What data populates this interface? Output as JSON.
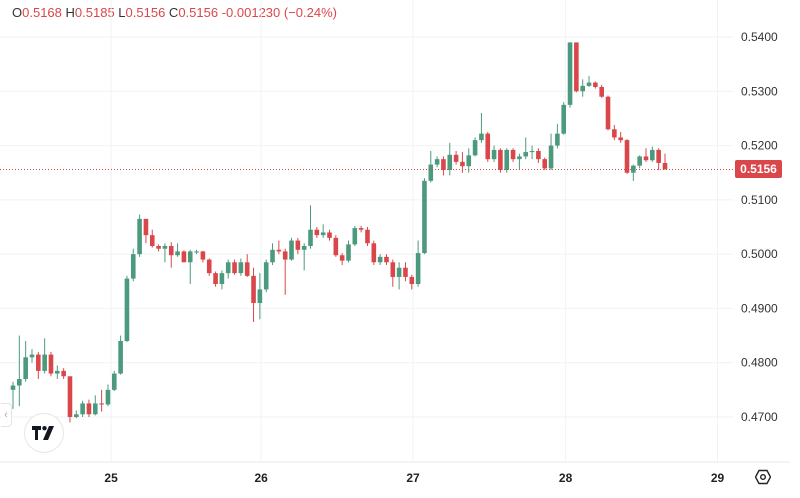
{
  "legend": {
    "open_label": "O",
    "open": "0.5168",
    "high_label": "H",
    "high": "0.5185",
    "low_label": "L",
    "low": "0.5156",
    "close_label": "C",
    "close": "0.5156",
    "change": "-0.001230 (−0.24%)"
  },
  "last_price": "0.5156",
  "colors": {
    "up": "#4c9a7d",
    "down": "#d9474b",
    "grid": "#f0f2f5"
  },
  "chart_data": {
    "type": "candlestick",
    "title": "",
    "xlabel": "",
    "ylabel": "",
    "ylim": [
      0.4655,
      0.546
    ],
    "y_ticks": [
      "0.5400",
      "0.5300",
      "0.5200",
      "0.5100",
      "0.5000",
      "0.4900",
      "0.4800",
      "0.4700"
    ],
    "x_ticks": [
      "25",
      "26",
      "27",
      "28",
      "29"
    ],
    "x_tick_candle_index": [
      15.5,
      39.2,
      63.2,
      87.3,
      111.3
    ],
    "last_price": 0.5156,
    "grid": true,
    "candles": [
      [
        0.475,
        0.4765,
        0.4715,
        0.4758
      ],
      [
        0.4758,
        0.485,
        0.472,
        0.477
      ],
      [
        0.477,
        0.484,
        0.4765,
        0.481
      ],
      [
        0.481,
        0.4825,
        0.48,
        0.4815
      ],
      [
        0.4815,
        0.482,
        0.477,
        0.4785
      ],
      [
        0.4785,
        0.4845,
        0.478,
        0.4815
      ],
      [
        0.4815,
        0.482,
        0.4775,
        0.478
      ],
      [
        0.478,
        0.4795,
        0.477,
        0.4785
      ],
      [
        0.4785,
        0.479,
        0.477,
        0.4775
      ],
      [
        0.4775,
        0.4775,
        0.469,
        0.47
      ],
      [
        0.47,
        0.4712,
        0.4698,
        0.4705
      ],
      [
        0.4705,
        0.473,
        0.47,
        0.4725
      ],
      [
        0.4725,
        0.4732,
        0.47,
        0.4705
      ],
      [
        0.4705,
        0.474,
        0.4703,
        0.4725
      ],
      [
        0.4725,
        0.475,
        0.471,
        0.4723
      ],
      [
        0.4723,
        0.476,
        0.472,
        0.475
      ],
      [
        0.475,
        0.4785,
        0.4748,
        0.478
      ],
      [
        0.478,
        0.485,
        0.4778,
        0.484
      ],
      [
        0.484,
        0.496,
        0.4838,
        0.4955
      ],
      [
        0.4955,
        0.501,
        0.495,
        0.5
      ],
      [
        0.5,
        0.5073,
        0.4995,
        0.5065
      ],
      [
        0.5065,
        0.5065,
        0.502,
        0.5035
      ],
      [
        0.5035,
        0.5045,
        0.5012,
        0.5015
      ],
      [
        0.5015,
        0.5018,
        0.5005,
        0.501
      ],
      [
        0.501,
        0.502,
        0.4985,
        0.5015
      ],
      [
        0.5015,
        0.5022,
        0.4975,
        0.4998
      ],
      [
        0.4998,
        0.502,
        0.4995,
        0.5005
      ],
      [
        0.5005,
        0.5007,
        0.499,
        0.4985
      ],
      [
        0.4985,
        0.5008,
        0.4945,
        0.5005
      ],
      [
        0.5005,
        0.5008,
        0.5,
        0.5005
      ],
      [
        0.5005,
        0.5006,
        0.4985,
        0.499
      ],
      [
        0.499,
        0.4992,
        0.496,
        0.4965
      ],
      [
        0.4965,
        0.4968,
        0.494,
        0.4945
      ],
      [
        0.4945,
        0.497,
        0.4935,
        0.4965
      ],
      [
        0.4965,
        0.499,
        0.4955,
        0.4985
      ],
      [
        0.4985,
        0.499,
        0.4962,
        0.4965
      ],
      [
        0.4965,
        0.4992,
        0.496,
        0.4985
      ],
      [
        0.4985,
        0.5,
        0.4958,
        0.496
      ],
      [
        0.496,
        0.4975,
        0.4875,
        0.491
      ],
      [
        0.491,
        0.4965,
        0.488,
        0.4935
      ],
      [
        0.4935,
        0.499,
        0.493,
        0.4985
      ],
      [
        0.4985,
        0.502,
        0.498,
        0.5008
      ],
      [
        0.5008,
        0.5025,
        0.5,
        0.5005
      ],
      [
        0.5005,
        0.501,
        0.4925,
        0.499
      ],
      [
        0.499,
        0.503,
        0.4988,
        0.5025
      ],
      [
        0.5025,
        0.503,
        0.5,
        0.5008
      ],
      [
        0.5008,
        0.502,
        0.497,
        0.5015
      ],
      [
        0.5015,
        0.509,
        0.501,
        0.5045
      ],
      [
        0.5045,
        0.505,
        0.503,
        0.5035
      ],
      [
        0.5035,
        0.5055,
        0.503,
        0.504
      ],
      [
        0.504,
        0.5045,
        0.5025,
        0.503
      ],
      [
        0.503,
        0.5035,
        0.4995,
        0.4998
      ],
      [
        0.4998,
        0.5002,
        0.498,
        0.4988
      ],
      [
        0.4988,
        0.5025,
        0.4985,
        0.5018
      ],
      [
        0.5018,
        0.5052,
        0.5015,
        0.5048
      ],
      [
        0.5048,
        0.5052,
        0.504,
        0.5045
      ],
      [
        0.5045,
        0.505,
        0.5015,
        0.502
      ],
      [
        0.502,
        0.5025,
        0.498,
        0.4985
      ],
      [
        0.4985,
        0.5,
        0.498,
        0.4995
      ],
      [
        0.4995,
        0.5,
        0.498,
        0.4985
      ],
      [
        0.4985,
        0.499,
        0.494,
        0.4958
      ],
      [
        0.4958,
        0.4985,
        0.4935,
        0.4975
      ],
      [
        0.4975,
        0.4985,
        0.495,
        0.4958
      ],
      [
        0.4958,
        0.4962,
        0.4935,
        0.4945
      ],
      [
        0.4945,
        0.5025,
        0.494,
        0.5002
      ],
      [
        0.5002,
        0.514,
        0.5,
        0.5135
      ],
      [
        0.5135,
        0.519,
        0.5132,
        0.5165
      ],
      [
        0.5165,
        0.518,
        0.516,
        0.5175
      ],
      [
        0.5175,
        0.518,
        0.5145,
        0.5155
      ],
      [
        0.5155,
        0.5205,
        0.5145,
        0.5183
      ],
      [
        0.5183,
        0.519,
        0.5165,
        0.517
      ],
      [
        0.517,
        0.5188,
        0.515,
        0.5162
      ],
      [
        0.5162,
        0.5195,
        0.515,
        0.5182
      ],
      [
        0.5182,
        0.5215,
        0.518,
        0.521
      ],
      [
        0.521,
        0.526,
        0.5205,
        0.5222
      ],
      [
        0.5222,
        0.5225,
        0.517,
        0.5175
      ],
      [
        0.5175,
        0.52,
        0.517,
        0.5192
      ],
      [
        0.5192,
        0.5195,
        0.515,
        0.5155
      ],
      [
        0.5155,
        0.5195,
        0.515,
        0.5192
      ],
      [
        0.5192,
        0.5195,
        0.517,
        0.5175
      ],
      [
        0.5175,
        0.5185,
        0.5155,
        0.518
      ],
      [
        0.518,
        0.5215,
        0.5175,
        0.5188
      ],
      [
        0.5188,
        0.52,
        0.5175,
        0.519
      ],
      [
        0.519,
        0.5195,
        0.5168,
        0.5175
      ],
      [
        0.5175,
        0.5178,
        0.5155,
        0.5158
      ],
      [
        0.5158,
        0.5222,
        0.5155,
        0.52
      ],
      [
        0.52,
        0.524,
        0.5195,
        0.5222
      ],
      [
        0.5222,
        0.528,
        0.522,
        0.5275
      ],
      [
        0.5275,
        0.539,
        0.527,
        0.539
      ],
      [
        0.539,
        0.539,
        0.5298,
        0.53
      ],
      [
        0.53,
        0.5322,
        0.529,
        0.531
      ],
      [
        0.531,
        0.5328,
        0.5308,
        0.5316
      ],
      [
        0.5316,
        0.5318,
        0.5305,
        0.5308
      ],
      [
        0.5308,
        0.5312,
        0.5288,
        0.529
      ],
      [
        0.529,
        0.5292,
        0.5228,
        0.523
      ],
      [
        0.523,
        0.5238,
        0.521,
        0.5215
      ],
      [
        0.5215,
        0.5225,
        0.5205,
        0.521
      ],
      [
        0.521,
        0.5212,
        0.5148,
        0.515
      ],
      [
        0.515,
        0.5165,
        0.5135,
        0.5163
      ],
      [
        0.5163,
        0.5182,
        0.5158,
        0.518
      ],
      [
        0.518,
        0.5195,
        0.517,
        0.5173
      ],
      [
        0.5173,
        0.5198,
        0.517,
        0.5192
      ],
      [
        0.5192,
        0.5195,
        0.5155,
        0.5168
      ],
      [
        0.5168,
        0.5185,
        0.5156,
        0.5156
      ]
    ]
  }
}
